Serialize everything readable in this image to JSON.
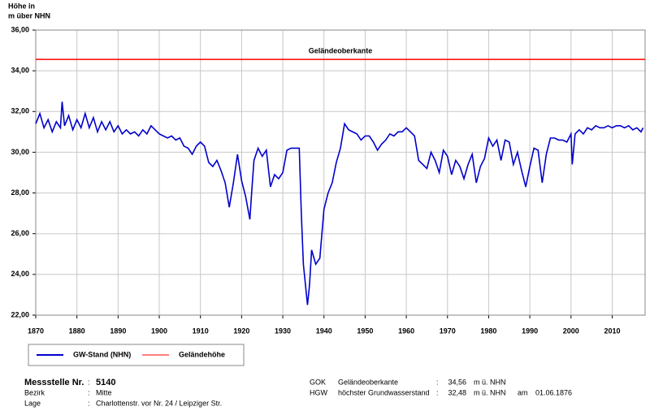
{
  "chart_data": {
    "type": "line",
    "y_label": [
      "Höhe in",
      "m über NHN"
    ],
    "xlim": [
      1870,
      2018
    ],
    "xticks": [
      1870,
      1880,
      1890,
      1900,
      1910,
      1920,
      1930,
      1940,
      1950,
      1960,
      1970,
      1980,
      1990,
      2000,
      2010
    ],
    "ylim": [
      22,
      36
    ],
    "yticks": [
      {
        "value": 22,
        "label": "22,00"
      },
      {
        "value": 24,
        "label": "24,00"
      },
      {
        "value": 26,
        "label": "26,00"
      },
      {
        "value": 28,
        "label": "28,00"
      },
      {
        "value": 30,
        "label": "30,00"
      },
      {
        "value": 32,
        "label": "32,00"
      },
      {
        "value": 34,
        "label": "34,00"
      },
      {
        "value": 36,
        "label": "36,00"
      }
    ],
    "grid": true,
    "series": [
      {
        "name": "GW-Stand (NHN)",
        "color": "#0000cc",
        "x": [
          1870,
          1871,
          1872,
          1873,
          1874,
          1875,
          1876,
          1876.4,
          1877,
          1878,
          1879,
          1880,
          1881,
          1882,
          1883,
          1884,
          1885,
          1886,
          1887,
          1888,
          1889,
          1890,
          1891,
          1892,
          1893,
          1894,
          1895,
          1896,
          1897,
          1898,
          1899,
          1900,
          1901,
          1902,
          1903,
          1904,
          1905,
          1906,
          1907,
          1908,
          1909,
          1910,
          1911,
          1912,
          1913,
          1914,
          1915,
          1916,
          1917,
          1918,
          1919,
          1920,
          1921,
          1922,
          1922.5,
          1923,
          1924,
          1925,
          1926,
          1927,
          1928,
          1929,
          1930,
          1931,
          1932,
          1933,
          1934,
          1934.5,
          1935,
          1936,
          1936.5,
          1937,
          1938,
          1939,
          1940,
          1941,
          1942,
          1943,
          1944,
          1945,
          1946,
          1947,
          1948,
          1949,
          1950,
          1951,
          1952,
          1953,
          1954,
          1955,
          1956,
          1957,
          1958,
          1959,
          1960,
          1961,
          1962,
          1963,
          1964,
          1965,
          1966,
          1967,
          1968,
          1969,
          1970,
          1971,
          1972,
          1973,
          1974,
          1975,
          1976,
          1977,
          1978,
          1979,
          1980,
          1981,
          1982,
          1983,
          1984,
          1985,
          1986,
          1987,
          1988,
          1989,
          1990,
          1991,
          1992,
          1993,
          1994,
          1995,
          1996,
          1997,
          1998,
          1999,
          2000,
          2000.3,
          2001,
          2002,
          2003,
          2004,
          2005,
          2006,
          2007,
          2008,
          2009,
          2010,
          2011,
          2012,
          2013,
          2014,
          2015,
          2016,
          2017,
          2017.5
        ],
        "values": [
          31.4,
          31.9,
          31.2,
          31.6,
          31.0,
          31.5,
          31.2,
          32.48,
          31.3,
          31.8,
          31.1,
          31.6,
          31.2,
          31.9,
          31.2,
          31.7,
          31.0,
          31.5,
          31.1,
          31.5,
          31.0,
          31.3,
          30.9,
          31.1,
          30.9,
          31.0,
          30.8,
          31.1,
          30.9,
          31.3,
          31.1,
          30.9,
          30.8,
          30.7,
          30.8,
          30.6,
          30.7,
          30.3,
          30.2,
          29.9,
          30.3,
          30.5,
          30.3,
          29.5,
          29.3,
          29.6,
          29.1,
          28.5,
          27.3,
          28.5,
          29.9,
          28.6,
          27.8,
          26.7,
          28.2,
          29.6,
          30.2,
          29.8,
          30.1,
          28.3,
          28.9,
          28.7,
          29.0,
          30.1,
          30.2,
          30.2,
          30.2,
          27.0,
          24.5,
          22.5,
          23.5,
          25.2,
          24.5,
          24.8,
          27.2,
          28.0,
          28.5,
          29.5,
          30.2,
          31.4,
          31.1,
          31.0,
          30.9,
          30.6,
          30.8,
          30.8,
          30.5,
          30.1,
          30.4,
          30.6,
          30.9,
          30.8,
          31.0,
          31.0,
          31.2,
          31.0,
          30.8,
          29.6,
          29.4,
          29.2,
          30.0,
          29.6,
          29.0,
          30.1,
          29.8,
          28.9,
          29.6,
          29.3,
          28.7,
          29.4,
          29.9,
          28.5,
          29.3,
          29.7,
          30.7,
          30.3,
          30.6,
          29.6,
          30.6,
          30.5,
          29.4,
          30.0,
          29.1,
          28.3,
          29.3,
          30.2,
          30.1,
          28.5,
          29.9,
          30.7,
          30.7,
          30.6,
          30.6,
          30.5,
          30.9,
          29.4,
          30.9,
          31.1,
          30.9,
          31.2,
          31.1,
          31.3,
          31.2,
          31.2,
          31.3,
          31.2,
          31.3,
          31.3,
          31.2,
          31.3,
          31.1,
          31.2,
          31.0,
          31.2
        ]
      },
      {
        "name": "Geländehöhe",
        "color": "#ff0000",
        "value": 34.56,
        "label": "Geländeoberkante"
      }
    ]
  },
  "info": {
    "sep": ":",
    "left": [
      [
        "Messstelle Nr.",
        "5140"
      ],
      [
        "Bezirk",
        "Mitte"
      ],
      [
        "Lage",
        "Charlottenstr. vor Nr. 24 / Leipziger Str."
      ]
    ],
    "right": [
      {
        "code": "GOK",
        "name": "Geländeoberkante",
        "value": "34,56",
        "unit": "m ü. NHN"
      },
      {
        "code": "HGW",
        "name": "höchster Grundwasserstand",
        "value": "32,48",
        "unit": "m ü. NHN",
        "date_label": "am",
        "date": "01.06.1876"
      }
    ]
  }
}
